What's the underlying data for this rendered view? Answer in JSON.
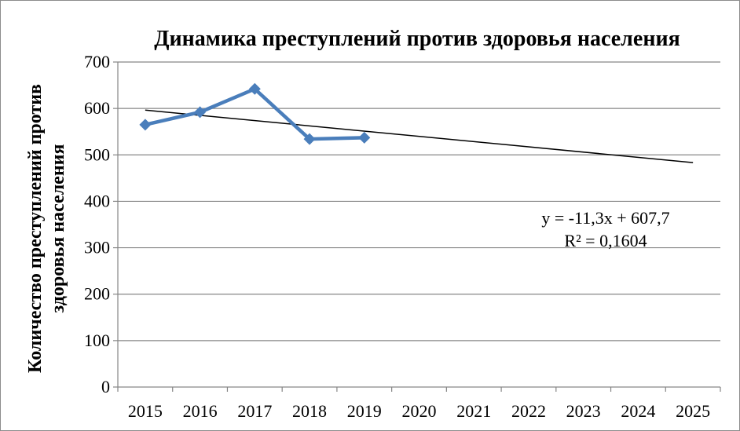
{
  "chart_data": {
    "type": "line",
    "title": "Динамика преступлений против здоровья населения",
    "xlabel": "",
    "ylabel_lines": [
      "Количество преступлений против",
      "здоровья населения"
    ],
    "categories": [
      "2015",
      "2016",
      "2017",
      "2018",
      "2019",
      "2020",
      "2021",
      "2022",
      "2023",
      "2024",
      "2025"
    ],
    "ylim": [
      0,
      700
    ],
    "yticks": [
      0,
      100,
      200,
      300,
      400,
      500,
      600,
      700
    ],
    "grid": true,
    "series": [
      {
        "values": [
          565,
          592,
          642,
          534,
          537,
          null,
          null,
          null,
          null,
          null,
          null
        ],
        "color": "#4a7ebb"
      }
    ],
    "trendline": {
      "slope": -11.3,
      "intercept": 607.7,
      "color": "#000000",
      "equation": "y = -11,3x + 607,7",
      "r_squared": "R² = 0,1604"
    }
  }
}
